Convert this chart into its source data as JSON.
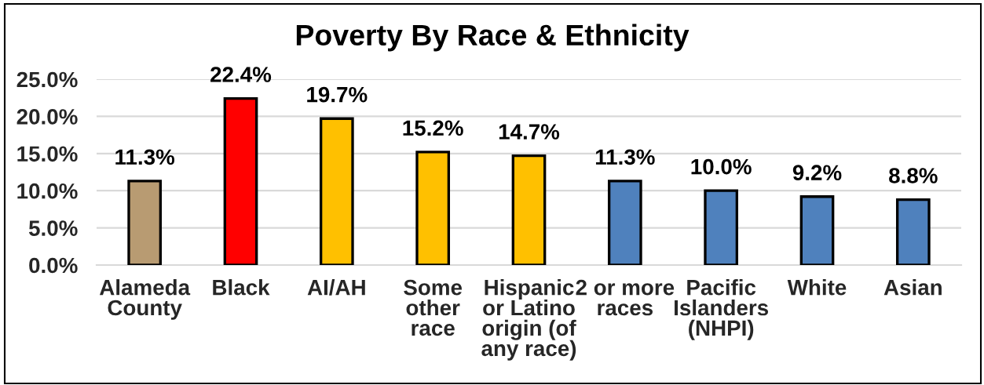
{
  "chart_data": {
    "type": "bar",
    "title": "Poverty By Race & Ethnicity",
    "categories": [
      "Alameda\nCounty",
      "Black",
      "AI/AH",
      "Some\nother\nrace",
      "Hispanic\nor Latino\norigin (of\nany race)",
      "2 or more\nraces",
      "Pacific\nIslanders\n(NHPI)",
      "White",
      "Asian"
    ],
    "values": [
      11.3,
      22.4,
      19.7,
      15.2,
      14.7,
      11.3,
      10.0,
      9.2,
      8.8
    ],
    "colors": [
      "#b89b72",
      "#ff0000",
      "#ffc000",
      "#ffc000",
      "#ffc000",
      "#4f81bd",
      "#4f81bd",
      "#4f81bd",
      "#4f81bd"
    ],
    "value_labels": [
      "11.3%",
      "22.4%",
      "19.7%",
      "15.2%",
      "14.7%",
      "11.3%",
      "10.0%",
      "9.2%",
      "8.8%"
    ],
    "ylim": [
      0,
      25
    ],
    "yticks": [
      {
        "value": 0,
        "label": "0.0%"
      },
      {
        "value": 5,
        "label": "5.0%"
      },
      {
        "value": 10,
        "label": "10.0%"
      },
      {
        "value": 15,
        "label": "15.0%"
      },
      {
        "value": 20,
        "label": "20.0%"
      },
      {
        "value": 25,
        "label": "25.0%"
      }
    ],
    "grid": "y",
    "legend": false
  }
}
